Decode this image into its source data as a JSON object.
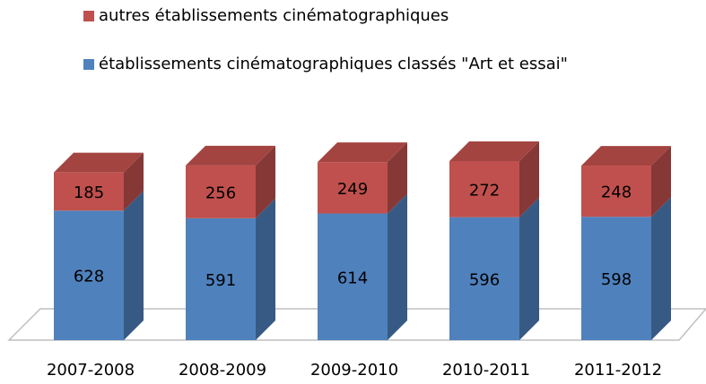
{
  "chart_data": {
    "type": "bar3d_stacked",
    "categories": [
      "2007-2008",
      "2008-2009",
      "2009-2010",
      "2010-2011",
      "2011-2012"
    ],
    "series": [
      {
        "name": "établissements cinématographiques classés \"Art et essai\"",
        "color": "#4f81bd",
        "values": [
          628,
          591,
          614,
          596,
          598
        ]
      },
      {
        "name": "autres établissements cinématographiques",
        "color": "#c0504d",
        "values": [
          185,
          256,
          249,
          272,
          248
        ]
      }
    ]
  }
}
